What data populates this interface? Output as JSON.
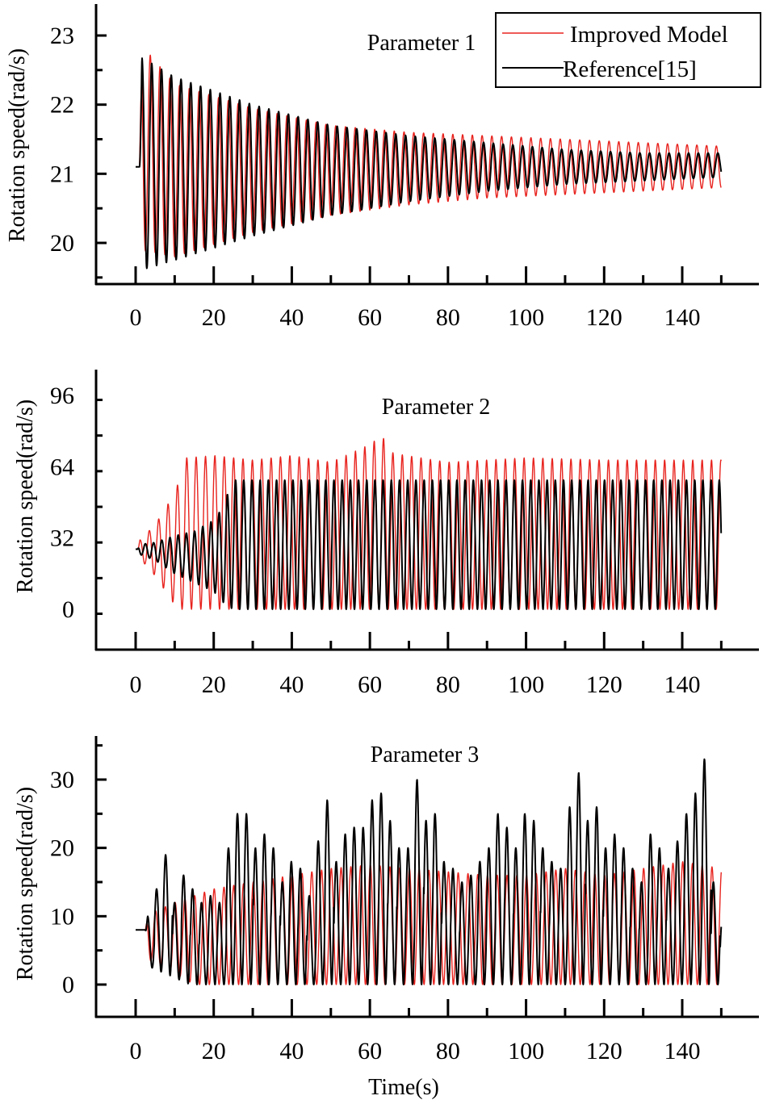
{
  "chart_data": [
    {
      "type": "line",
      "title": "Parameter 1",
      "xlabel": "",
      "ylabel": "Rotation speed(rad/s)",
      "xlim": [
        0,
        150
      ],
      "ylim": [
        19.5,
        23.5
      ],
      "x_ticks": [
        0,
        20,
        40,
        60,
        80,
        100,
        120,
        140
      ],
      "y_ticks": [
        20,
        21,
        22,
        23
      ],
      "legend": {
        "placement": "top-right",
        "entries": [
          "Improved Model",
          "Reference[15]"
        ]
      },
      "grid": false,
      "series": [
        {
          "name": "Improved Model",
          "color": "#e8231e",
          "initial": 21.1,
          "start": 1.0,
          "period": 2.5,
          "phase": 0.15,
          "upper": [
            [
              1,
              22.9
            ],
            [
              10,
              22.3
            ],
            [
              30,
              21.95
            ],
            [
              50,
              21.7
            ],
            [
              70,
              21.6
            ],
            [
              90,
              21.55
            ],
            [
              110,
              21.5
            ],
            [
              130,
              21.45
            ],
            [
              150,
              21.4
            ]
          ],
          "lower": [
            [
              1,
              19.9
            ],
            [
              10,
              19.8
            ],
            [
              30,
              20.15
            ],
            [
              50,
              20.4
            ],
            [
              70,
              20.55
            ],
            [
              90,
              20.65
            ],
            [
              110,
              20.7
            ],
            [
              130,
              20.75
            ],
            [
              150,
              20.8
            ]
          ]
        },
        {
          "name": "Reference[15]",
          "color": "#000000",
          "initial": 21.1,
          "start": 1.0,
          "period": 2.5,
          "phase": 0,
          "upper": [
            [
              1,
              22.7
            ],
            [
              10,
              22.4
            ],
            [
              30,
              22.0
            ],
            [
              50,
              21.7
            ],
            [
              70,
              21.55
            ],
            [
              90,
              21.45
            ],
            [
              110,
              21.35
            ],
            [
              130,
              21.3
            ],
            [
              150,
              21.3
            ]
          ],
          "lower": [
            [
              1,
              19.6
            ],
            [
              10,
              19.75
            ],
            [
              30,
              20.1
            ],
            [
              50,
              20.4
            ],
            [
              70,
              20.6
            ],
            [
              90,
              20.75
            ],
            [
              110,
              20.85
            ],
            [
              130,
              20.9
            ],
            [
              150,
              20.95
            ]
          ]
        }
      ]
    },
    {
      "type": "line",
      "title": "Parameter 2",
      "xlabel": "",
      "ylabel": "Rotation speed(rad/s)",
      "xlim": [
        0,
        150
      ],
      "ylim": [
        -18,
        112
      ],
      "x_ticks": [
        0,
        20,
        40,
        60,
        80,
        100,
        120,
        140
      ],
      "y_ticks": [
        0,
        32,
        64,
        96
      ],
      "grid": false,
      "series": [
        {
          "name": "Improved Model",
          "color": "#e8231e",
          "initial": 27,
          "start": 0.5,
          "period": 2.4,
          "phase": 0,
          "upper": [
            [
              0.5,
              30
            ],
            [
              5,
              38
            ],
            [
              10,
              52
            ],
            [
              13,
              68
            ],
            [
              20,
              69
            ],
            [
              30,
              67
            ],
            [
              40,
              69
            ],
            [
              50,
              66
            ],
            [
              60,
              74
            ],
            [
              63,
              78
            ],
            [
              66,
              70
            ],
            [
              80,
              66
            ],
            [
              100,
              68
            ],
            [
              120,
              67
            ],
            [
              140,
              67
            ],
            [
              150,
              67
            ]
          ],
          "lower": [
            [
              0.5,
              24
            ],
            [
              5,
              15
            ],
            [
              10,
              2
            ],
            [
              11,
              0
            ],
            [
              150,
              0
            ]
          ]
        },
        {
          "name": "Reference[15]",
          "color": "#000000",
          "initial": 27,
          "start": 0.5,
          "period": 2.1,
          "phase": 0.3,
          "upper": [
            [
              0.5,
              29
            ],
            [
              5,
              30
            ],
            [
              10,
              33
            ],
            [
              15,
              35
            ],
            [
              20,
              40
            ],
            [
              22,
              45
            ],
            [
              25,
              58
            ],
            [
              150,
              58
            ]
          ],
          "lower": [
            [
              0.5,
              25
            ],
            [
              5,
              22
            ],
            [
              10,
              16
            ],
            [
              15,
              12
            ],
            [
              20,
              8
            ],
            [
              23,
              2
            ],
            [
              25,
              0
            ],
            [
              150,
              0
            ]
          ]
        }
      ]
    },
    {
      "type": "line",
      "title": "Parameter 3",
      "xlabel": "Time(s)",
      "ylabel": "Rotation speed(rad/s)",
      "xlim": [
        0,
        150
      ],
      "ylim": [
        -5,
        36
      ],
      "x_ticks": [
        0,
        20,
        40,
        60,
        80,
        100,
        120,
        140
      ],
      "y_ticks": [
        0,
        10,
        20,
        30
      ],
      "grid": false,
      "series": [
        {
          "name": "Improved Model",
          "color": "#e8231e",
          "initial": 8,
          "start": 2.5,
          "period": 2.5,
          "phase": 0.2,
          "upper": [
            [
              2,
              10
            ],
            [
              10,
              12
            ],
            [
              20,
              14
            ],
            [
              30,
              15
            ],
            [
              40,
              16
            ],
            [
              50,
              17
            ],
            [
              60,
              17.5
            ],
            [
              70,
              17
            ],
            [
              80,
              16.5
            ],
            [
              90,
              16
            ],
            [
              100,
              16
            ],
            [
              110,
              17
            ],
            [
              120,
              16
            ],
            [
              130,
              17
            ],
            [
              140,
              18
            ],
            [
              150,
              17
            ]
          ],
          "lower": [
            [
              2,
              4
            ],
            [
              12,
              1
            ],
            [
              15,
              0
            ],
            [
              150,
              0
            ]
          ]
        },
        {
          "name": "Reference[15]",
          "color": "#000000",
          "initial": 8,
          "start": 2.5,
          "period": 2.3,
          "phase": 0,
          "peaks": [
            10,
            14,
            19,
            12,
            16,
            14,
            12,
            13,
            12,
            20,
            25,
            25,
            20,
            22,
            20,
            15,
            18,
            17,
            13,
            21,
            27,
            18,
            22,
            23,
            23,
            27,
            28,
            24,
            20,
            20,
            30,
            24,
            25,
            18,
            17,
            15,
            16,
            18,
            20,
            25,
            23,
            20,
            25,
            24,
            20,
            18,
            17,
            26,
            31,
            24,
            26,
            20,
            22,
            20,
            17,
            15,
            22,
            20,
            17,
            21,
            25,
            28,
            33,
            15
          ],
          "lower": [
            [
              2,
              3
            ],
            [
              14,
              0
            ],
            [
              150,
              0
            ]
          ]
        }
      ]
    }
  ]
}
